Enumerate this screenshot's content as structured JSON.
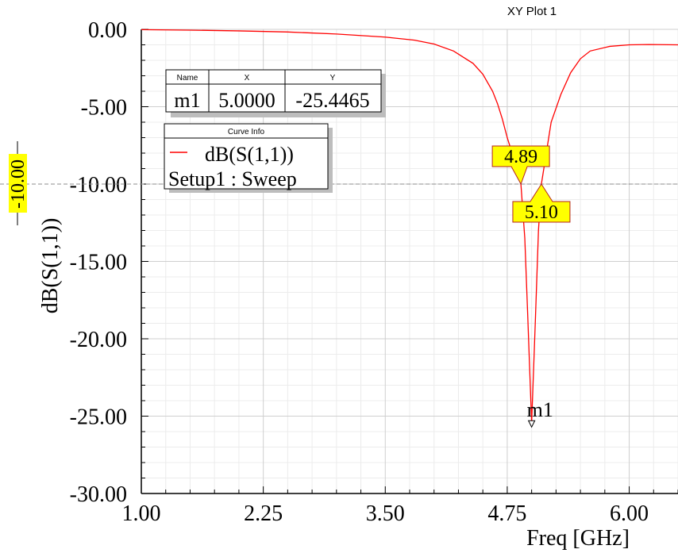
{
  "chart_data": {
    "type": "line",
    "title": "XY Plot 1",
    "xlabel": "Freq [GHz]",
    "ylabel": "dB(S(1,1))",
    "xlim": [
      1.0,
      6.5
    ],
    "ylim": [
      -30.0,
      0.0
    ],
    "x_ticks": [
      "1.00",
      "2.25",
      "3.50",
      "4.75",
      "6.00"
    ],
    "y_ticks": [
      "0.00",
      "-5.00",
      "-10.00",
      "-15.00",
      "-20.00",
      "-25.00",
      "-30.00"
    ],
    "grid": true,
    "series": [
      {
        "name": "dB(S(1,1))",
        "color": "#ff0000",
        "x": [
          1.0,
          1.5,
          2.0,
          2.5,
          3.0,
          3.5,
          3.8,
          4.0,
          4.2,
          4.4,
          4.5,
          4.6,
          4.65,
          4.7,
          4.75,
          4.8,
          4.85,
          4.89,
          4.93,
          4.96,
          5.0,
          5.04,
          5.07,
          5.1,
          5.15,
          5.2,
          5.3,
          5.4,
          5.5,
          5.6,
          5.8,
          6.0,
          6.2,
          6.5
        ],
        "y": [
          -0.02,
          -0.05,
          -0.1,
          -0.17,
          -0.3,
          -0.5,
          -0.7,
          -0.95,
          -1.4,
          -2.2,
          -2.9,
          -4.0,
          -4.8,
          -5.8,
          -7.0,
          -8.0,
          -9.0,
          -10.0,
          -13.5,
          -18.5,
          -25.4465,
          -18.5,
          -13.0,
          -10.0,
          -8.0,
          -6.0,
          -4.2,
          -2.8,
          -1.9,
          -1.4,
          -1.1,
          -1.0,
          -0.98,
          -1.0
        ]
      }
    ],
    "reference_line": {
      "y": -10.0,
      "label": "-10.00"
    },
    "markers_table": {
      "headers": [
        "Name",
        "X",
        "Y"
      ],
      "rows": [
        [
          "m1",
          "5.0000",
          "-25.4465"
        ]
      ]
    },
    "marker": {
      "name": "m1",
      "x": 5.0,
      "y": -25.4465
    },
    "crossing_labels": [
      {
        "text": "4.89",
        "x": 4.89,
        "y": -10.0
      },
      {
        "text": "5.10",
        "x": 5.1,
        "y": -10.0
      }
    ],
    "curve_info": {
      "header": "Curve Info",
      "entry": "dB(S(1,1))",
      "subentry": "Setup1 : Sweep"
    }
  }
}
